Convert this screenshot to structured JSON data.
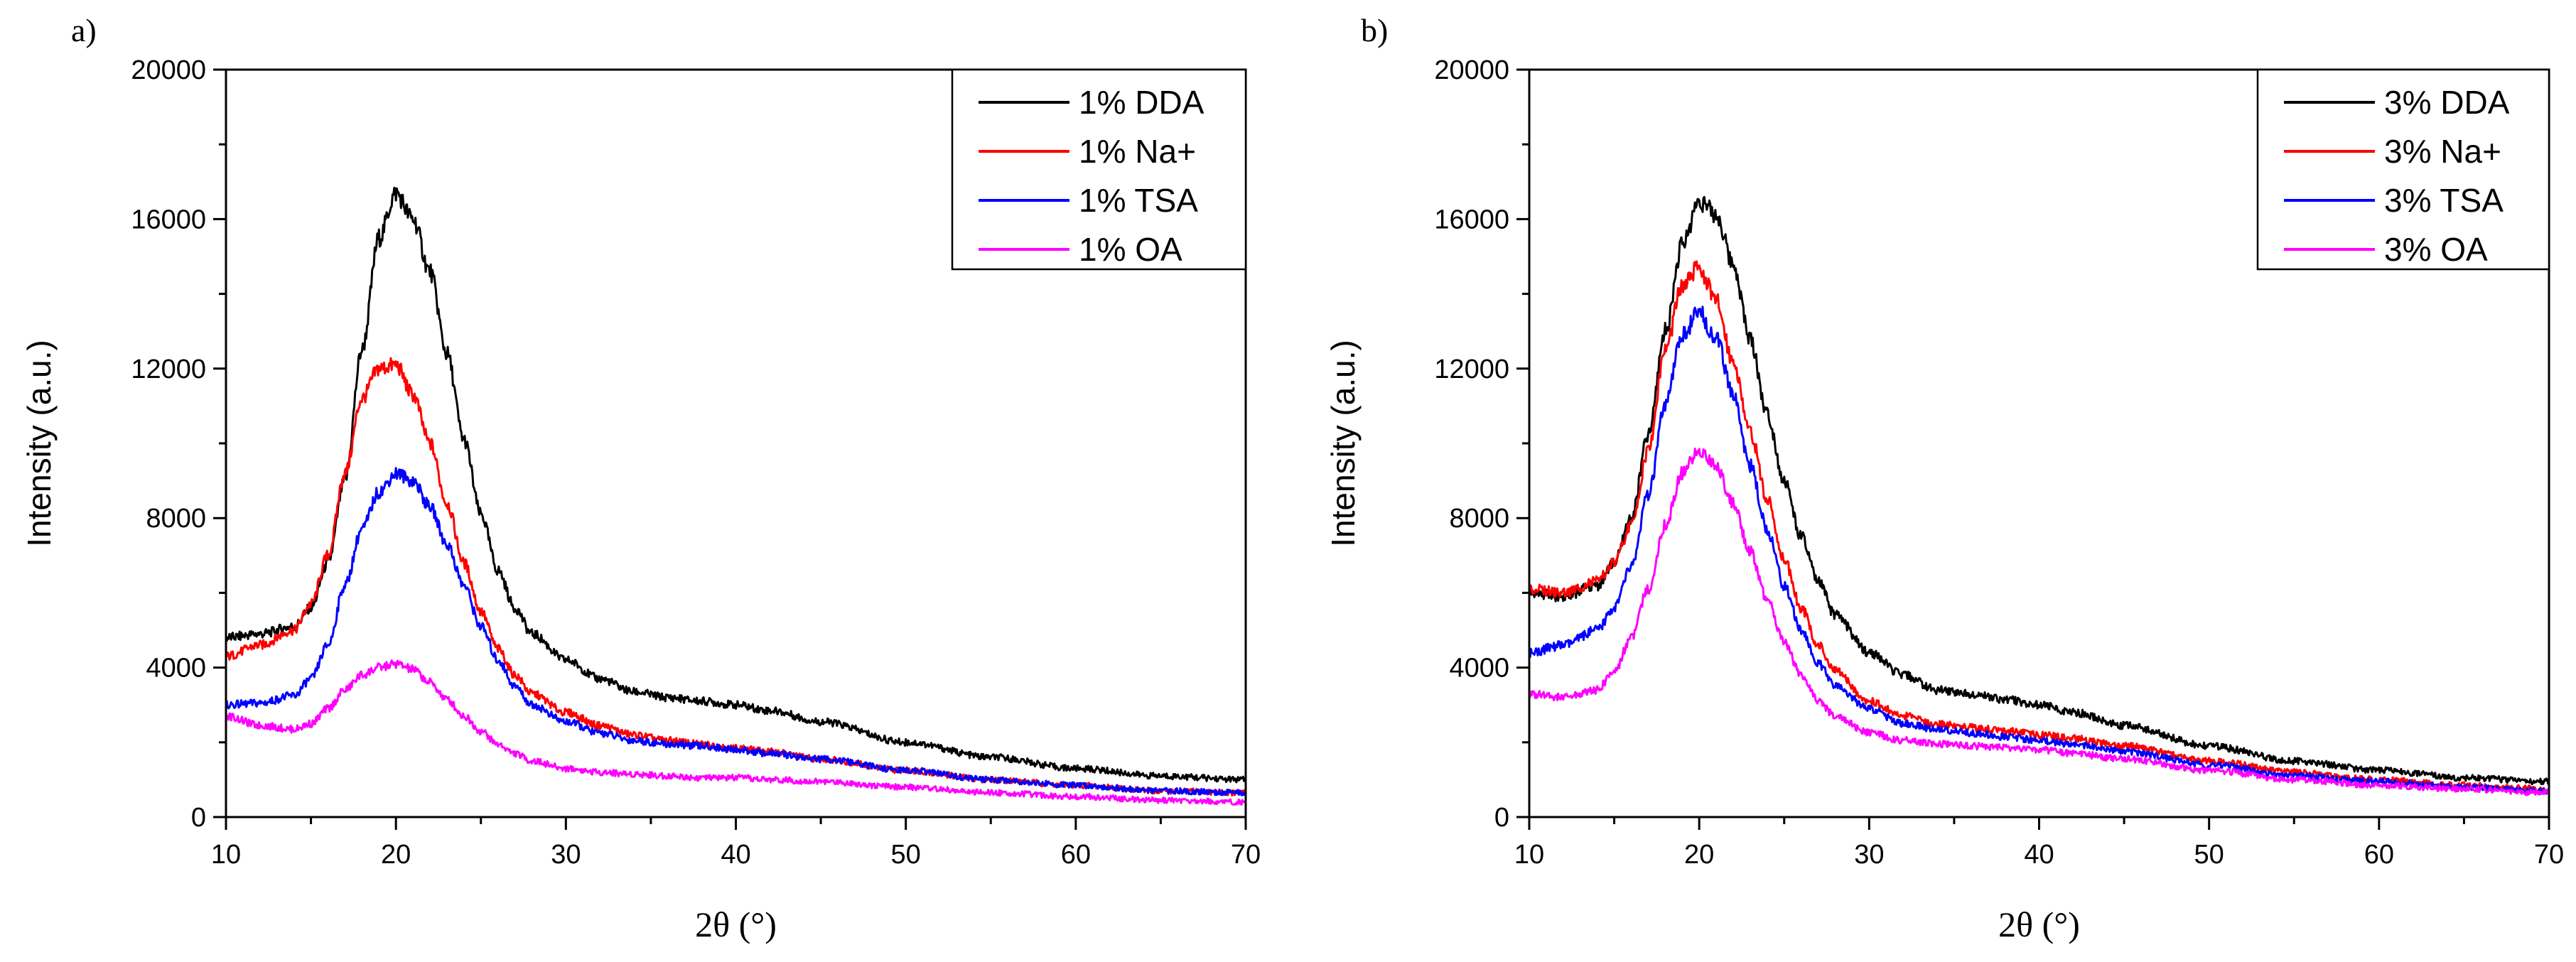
{
  "chart_data": [
    {
      "type": "line",
      "panel_label": "a)",
      "xlabel": "2θ (°)",
      "ylabel": "Intensity (a.u.)",
      "xlim": [
        10,
        70
      ],
      "ylim": [
        0,
        20000
      ],
      "x_ticks": [
        10,
        20,
        30,
        40,
        50,
        60,
        70
      ],
      "y_ticks": [
        0,
        4000,
        8000,
        12000,
        16000,
        20000
      ],
      "legend_position": "top-right",
      "grid": false,
      "x": [
        10,
        12,
        14,
        15,
        16,
        17,
        18,
        19,
        20,
        21,
        22,
        23,
        24,
        25,
        26,
        27,
        28,
        30,
        32,
        34,
        36,
        38,
        40,
        42,
        45,
        50,
        55,
        60,
        65,
        70
      ],
      "series": [
        {
          "name": "1% DDA",
          "color": "#000000",
          "values": [
            4800,
            4900,
            5100,
            5600,
            6800,
            9000,
            12500,
            15500,
            16700,
            16000,
            14600,
            12400,
            10100,
            8100,
            6600,
            5600,
            4900,
            4200,
            3700,
            3350,
            3200,
            3100,
            3000,
            2850,
            2550,
            2000,
            1600,
            1300,
            1100,
            1000
          ]
        },
        {
          "name": "1% Na+",
          "color": "#ff0000",
          "values": [
            4300,
            4600,
            5000,
            5700,
            7000,
            9200,
            11200,
            12000,
            12100,
            11300,
            10000,
            8400,
            6800,
            5500,
            4500,
            3800,
            3300,
            2800,
            2450,
            2200,
            2050,
            1950,
            1850,
            1750,
            1550,
            1250,
            1000,
            850,
            700,
            650
          ]
        },
        {
          "name": "1% TSA",
          "color": "#0000ff",
          "values": [
            3000,
            3050,
            3250,
            3700,
            4600,
            6200,
            7700,
            8700,
            9200,
            9000,
            8300,
            7300,
            6200,
            5100,
            4200,
            3500,
            3000,
            2550,
            2250,
            2050,
            1950,
            1900,
            1800,
            1700,
            1550,
            1250,
            1000,
            850,
            700,
            650
          ]
        },
        {
          "name": "1% OA",
          "color": "#ff00ff",
          "values": [
            2700,
            2450,
            2350,
            2500,
            2900,
            3400,
            3800,
            4000,
            4100,
            3950,
            3600,
            3150,
            2700,
            2300,
            1950,
            1700,
            1500,
            1300,
            1200,
            1150,
            1100,
            1050,
            1050,
            1000,
            950,
            800,
            650,
            550,
            450,
            400
          ]
        }
      ]
    },
    {
      "type": "line",
      "panel_label": "b)",
      "xlabel": "2θ (°)",
      "ylabel": "Intensity (a.u.)",
      "xlim": [
        10,
        70
      ],
      "ylim": [
        0,
        20000
      ],
      "x_ticks": [
        10,
        20,
        30,
        40,
        50,
        60,
        70
      ],
      "y_ticks": [
        0,
        4000,
        8000,
        12000,
        16000,
        20000
      ],
      "legend_position": "top-right",
      "grid": false,
      "x": [
        10,
        12,
        14,
        15,
        16,
        17,
        18,
        19,
        20,
        21,
        22,
        23,
        24,
        25,
        26,
        27,
        28,
        30,
        32,
        34,
        36,
        38,
        40,
        42,
        45,
        50,
        55,
        60,
        65,
        70
      ],
      "series": [
        {
          "name": "3% DDA",
          "color": "#000000",
          "values": [
            6000,
            5900,
            6200,
            6800,
            8000,
            10200,
            13000,
            15300,
            16500,
            16100,
            14800,
            12800,
            10800,
            9000,
            7500,
            6300,
            5400,
            4400,
            3800,
            3400,
            3300,
            3150,
            3000,
            2800,
            2450,
            1900,
            1500,
            1250,
            1050,
            950
          ]
        },
        {
          "name": "3% Na+",
          "color": "#ff0000",
          "values": [
            6100,
            6000,
            6300,
            6800,
            7800,
            9800,
            12500,
            14200,
            14700,
            13800,
            12200,
            10300,
            8500,
            6900,
            5600,
            4600,
            3900,
            3100,
            2700,
            2500,
            2400,
            2300,
            2200,
            2100,
            1900,
            1500,
            1200,
            1000,
            850,
            750
          ]
        },
        {
          "name": "3% TSA",
          "color": "#0000ff",
          "values": [
            4400,
            4600,
            5000,
            5600,
            6700,
            8600,
            11000,
            12900,
            13500,
            12800,
            11300,
            9400,
            7700,
            6200,
            5000,
            4100,
            3500,
            2900,
            2500,
            2350,
            2250,
            2150,
            2050,
            1950,
            1750,
            1400,
            1100,
            950,
            800,
            700
          ]
        },
        {
          "name": "3% OA",
          "color": "#ff00ff",
          "values": [
            3300,
            3200,
            3400,
            3900,
            4800,
            6100,
            7800,
            9200,
            9800,
            9400,
            8400,
            7100,
            5800,
            4700,
            3800,
            3100,
            2700,
            2250,
            2050,
            1950,
            1900,
            1850,
            1800,
            1700,
            1550,
            1250,
            1000,
            850,
            750,
            650
          ]
        }
      ]
    }
  ]
}
